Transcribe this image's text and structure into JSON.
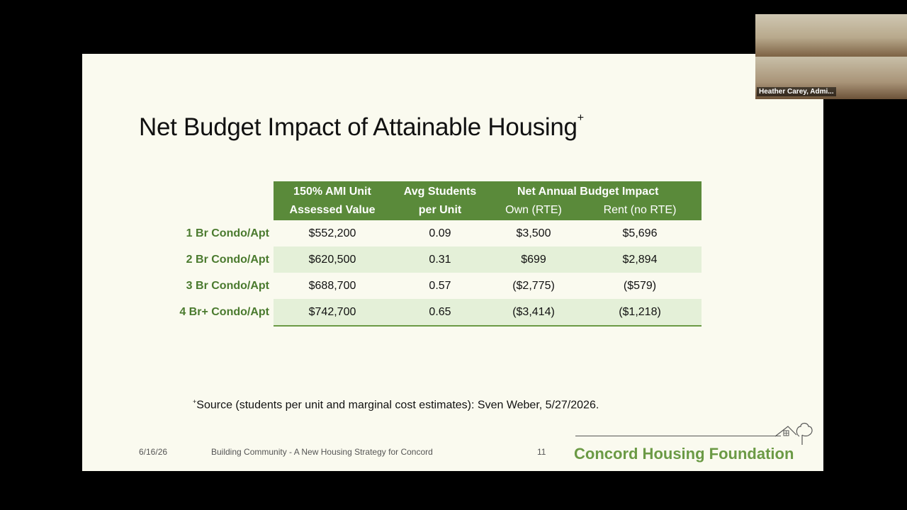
{
  "slide": {
    "title": "Net Budget Impact of Attainable Housing",
    "title_marker": "+",
    "table": {
      "headers": {
        "col1_line1": "150% AMI Unit",
        "col1_line2": "Assessed Value",
        "col2_line1": "Avg Students",
        "col2_line2": "per Unit",
        "group": "Net Annual Budget Impact",
        "col3": "Own (RTE)",
        "col4": "Rent (no RTE)"
      },
      "rows": [
        {
          "label": "1 Br Condo/Apt",
          "assessed": "$552,200",
          "students": "0.09",
          "own": "$3,500",
          "rent": "$5,696"
        },
        {
          "label": "2 Br Condo/Apt",
          "assessed": "$620,500",
          "students": "0.31",
          "own": "$699",
          "rent": "$2,894"
        },
        {
          "label": "3 Br Condo/Apt",
          "assessed": "$688,700",
          "students": "0.57",
          "own": "($2,775)",
          "rent": "($579)"
        },
        {
          "label": "4 Br+ Condo/Apt",
          "assessed": "$742,700",
          "students": "0.65",
          "own": "($3,414)",
          "rent": "($1,218)"
        }
      ]
    },
    "footnote_marker": "+",
    "footnote": "Source (students per unit and marginal cost estimates): Sven Weber, 5/27/2026.",
    "footer": {
      "date": "6/16/26",
      "presentation": "Building Community - A New Housing Strategy for Concord",
      "page": "11"
    },
    "logo_text": "Concord Housing Foundation"
  },
  "video": {
    "participant_name": "Heather Carey, Admi..."
  },
  "colors": {
    "header_green": "#5a8a3a",
    "label_green": "#4a7a2e",
    "row_shade": "#e4f0d8",
    "slide_bg": "#fafaef"
  }
}
